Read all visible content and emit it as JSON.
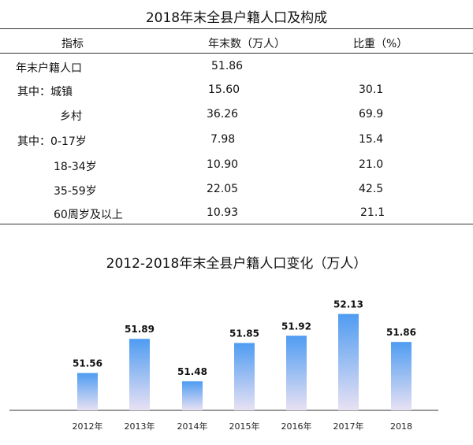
{
  "table": {
    "title": "2018年末全县户籍人口及构成",
    "headers": [
      "指标",
      "年末数（万人）",
      "比重（%）"
    ],
    "rows": [
      {
        "label": "年末户籍人口",
        "value": "51.86",
        "share": ""
      },
      {
        "label": "其中：城镇",
        "value": "15.60",
        "share": "30.1"
      },
      {
        "label": "乡村",
        "value": "36.26",
        "share": "69.9"
      },
      {
        "label": "其中：0-17岁",
        "value": "7.98",
        "share": "15.4"
      },
      {
        "label": "18-34岁",
        "value": "10.90",
        "share": "21.0"
      },
      {
        "label": "35-59岁",
        "value": "22.05",
        "share": "42.5"
      },
      {
        "label": "60周岁及以上",
        "value": "10.93",
        "share": "21.1"
      }
    ]
  },
  "chart_data": {
    "type": "bar",
    "title": "2012-2018年末全县户籍人口变化（万人）",
    "categories": [
      "2012年",
      "2013年",
      "2014年",
      "2015年",
      "2016年",
      "2017年",
      "2018"
    ],
    "values": [
      51.56,
      51.89,
      51.48,
      51.85,
      51.92,
      52.13,
      51.86
    ],
    "data_labels": [
      "51.56",
      "51.89",
      "51.48",
      "51.85",
      "51.92",
      "52.13",
      "51.86"
    ],
    "ylim": [
      51.2,
      52.15
    ],
    "grid": false,
    "colors": {
      "bar_top": "#4f9cf2",
      "bar_bottom": "#e8e1f3"
    }
  }
}
